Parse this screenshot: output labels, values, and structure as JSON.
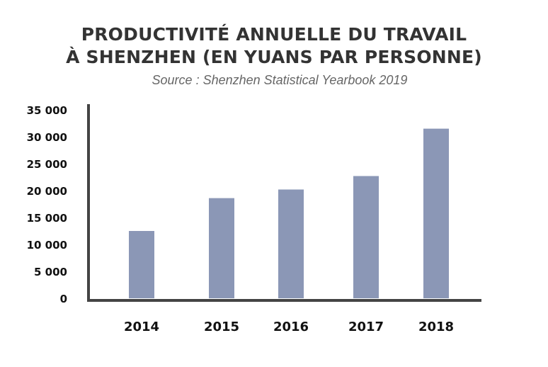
{
  "header": {
    "title_line1": "PRODUCTIVITÉ ANNUELLE DU TRAVAIL",
    "title_line2": "À SHENZHEN (EN YUANS PAR PERSONNE)",
    "subtitle": "Source : Shenzhen Statistical Yearbook 2019"
  },
  "colors": {
    "bar": "#8b97b6",
    "axis": "#444444",
    "title": "#333333"
  },
  "chart_data": {
    "type": "bar",
    "title": "PRODUCTIVITÉ ANNUELLE DU TRAVAIL À SHENZHEN (EN YUANS PAR PERSONNE)",
    "subtitle": "Source : Shenzhen Statistical Yearbook 2019",
    "xlabel": "",
    "ylabel": "",
    "categories": [
      "2014",
      "2015",
      "2016",
      "2017",
      "2018"
    ],
    "values": [
      12500,
      18600,
      20200,
      22700,
      31500
    ],
    "ylim": [
      0,
      35000
    ],
    "yticks": [
      0,
      5000,
      10000,
      15000,
      20000,
      25000,
      30000,
      35000
    ],
    "ytick_labels": [
      "0",
      "5 000",
      "10 000",
      "15 000",
      "20 000",
      "25 000",
      "30 000",
      "35 000"
    ],
    "grid": false,
    "legend": "none"
  }
}
